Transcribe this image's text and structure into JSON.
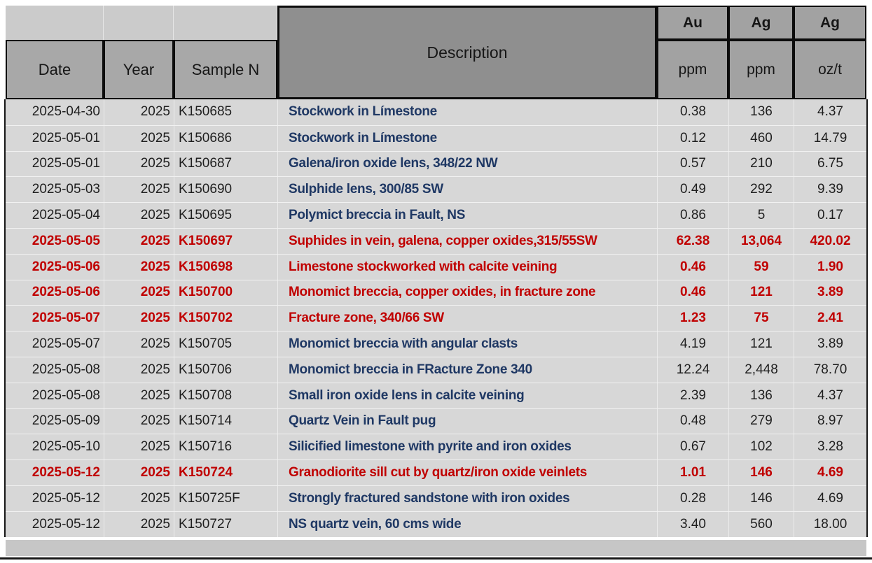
{
  "header": {
    "date": "Date",
    "year": "Year",
    "sample": "Sample N",
    "description": "Description",
    "au": "Au",
    "ag": "Ag",
    "ag_oz": "Ag",
    "au_unit": "ppm",
    "ag_unit": "ppm",
    "ag_oz_unit": "oz/t"
  },
  "colors": {
    "highlight_red": "#c00000",
    "description_blue": "#1f3864",
    "header_gray": "#a8a8a8",
    "description_header_gray": "#8f8f8f",
    "row_bg": "#d7d7d7"
  },
  "rows": [
    {
      "date": "2025-04-30",
      "year": "2025",
      "sample": "K150685",
      "description": "Stockwork in Límestone",
      "au_ppm": "0.38",
      "ag_ppm": "136",
      "ag_ozt": "4.37",
      "highlight": false
    },
    {
      "date": "2025-05-01",
      "year": "2025",
      "sample": "K150686",
      "description": "Stockwork in Límestone",
      "au_ppm": "0.12",
      "ag_ppm": "460",
      "ag_ozt": "14.79",
      "highlight": false
    },
    {
      "date": "2025-05-01",
      "year": "2025",
      "sample": "K150687",
      "description": "Galena/iron oxide lens, 348/22 NW",
      "au_ppm": "0.57",
      "ag_ppm": "210",
      "ag_ozt": "6.75",
      "highlight": false
    },
    {
      "date": "2025-05-03",
      "year": "2025",
      "sample": "K150690",
      "description": "Sulphide lens, 300/85 SW",
      "au_ppm": "0.49",
      "ag_ppm": "292",
      "ag_ozt": "9.39",
      "highlight": false
    },
    {
      "date": "2025-05-04",
      "year": "2025",
      "sample": "K150695",
      "description": "Polymict breccia in Fault, NS",
      "au_ppm": "0.86",
      "ag_ppm": "5",
      "ag_ozt": "0.17",
      "highlight": false
    },
    {
      "date": "2025-05-05",
      "year": "2025",
      "sample": "K150697",
      "description": "Suphides in vein, galena, copper oxides,315/55SW",
      "au_ppm": "62.38",
      "ag_ppm": "13,064",
      "ag_ozt": "420.02",
      "highlight": true
    },
    {
      "date": "2025-05-06",
      "year": "2025",
      "sample": "K150698",
      "description": "Limestone stockworked with calcite veining",
      "au_ppm": "0.46",
      "ag_ppm": "59",
      "ag_ozt": "1.90",
      "highlight": true
    },
    {
      "date": "2025-05-06",
      "year": "2025",
      "sample": "K150700",
      "description": "Monomict breccia, copper oxides, in fracture zone",
      "au_ppm": "0.46",
      "ag_ppm": "121",
      "ag_ozt": "3.89",
      "highlight": true
    },
    {
      "date": "2025-05-07",
      "year": "2025",
      "sample": "K150702",
      "description": "Fracture zone, 340/66 SW",
      "au_ppm": "1.23",
      "ag_ppm": "75",
      "ag_ozt": "2.41",
      "highlight": true
    },
    {
      "date": "2025-05-07",
      "year": "2025",
      "sample": "K150705",
      "description": "Monomict breccia with angular clasts",
      "au_ppm": "4.19",
      "ag_ppm": "121",
      "ag_ozt": "3.89",
      "highlight": false
    },
    {
      "date": "2025-05-08",
      "year": "2025",
      "sample": "K150706",
      "description": "Monomict breccia in FRacture Zone 340",
      "au_ppm": "12.24",
      "ag_ppm": "2,448",
      "ag_ozt": "78.70",
      "highlight": false
    },
    {
      "date": "2025-05-08",
      "year": "2025",
      "sample": "K150708",
      "description": "Small iron oxide lens in calcite veining",
      "au_ppm": "2.39",
      "ag_ppm": "136",
      "ag_ozt": "4.37",
      "highlight": false
    },
    {
      "date": "2025-05-09",
      "year": "2025",
      "sample": "K150714",
      "description": "Quartz Vein in Fault pug",
      "au_ppm": "0.48",
      "ag_ppm": "279",
      "ag_ozt": "8.97",
      "highlight": false
    },
    {
      "date": "2025-05-10",
      "year": "2025",
      "sample": "K150716",
      "description": "Silicified limestone with pyrite and iron oxides",
      "au_ppm": "0.67",
      "ag_ppm": "102",
      "ag_ozt": "3.28",
      "highlight": false
    },
    {
      "date": "2025-05-12",
      "year": "2025",
      "sample": "K150724",
      "description": "Granodiorite sill cut by quartz/iron oxide veinlets",
      "au_ppm": "1.01",
      "ag_ppm": "146",
      "ag_ozt": "4.69",
      "highlight": true
    },
    {
      "date": "2025-05-12",
      "year": "2025",
      "sample": "K150725F",
      "description": "Strongly fractured sandstone with iron oxides",
      "au_ppm": "0.28",
      "ag_ppm": "146",
      "ag_ozt": "4.69",
      "highlight": false
    },
    {
      "date": "2025-05-12",
      "year": "2025",
      "sample": "K150727",
      "description": "NS quartz vein, 60 cms wide",
      "au_ppm": "3.40",
      "ag_ppm": "560",
      "ag_ozt": "18.00",
      "highlight": false
    }
  ]
}
